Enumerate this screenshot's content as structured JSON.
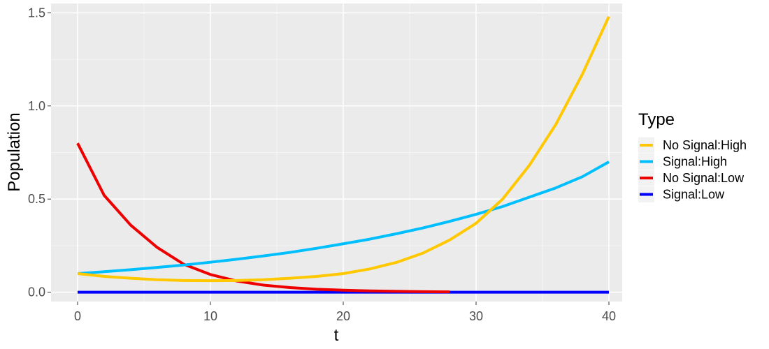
{
  "chart_data": {
    "type": "line",
    "title": "",
    "xlabel": "t",
    "ylabel": "Population",
    "xlim": [
      -2,
      41
    ],
    "ylim": [
      -0.05,
      1.55
    ],
    "x_ticks": [
      0,
      10,
      20,
      30,
      40
    ],
    "y_ticks": [
      0.0,
      0.5,
      1.0,
      1.5
    ],
    "x_tick_labels": [
      "0",
      "10",
      "20",
      "30",
      "40"
    ],
    "y_tick_labels": [
      "0.0",
      "0.5",
      "1.0",
      "1.5"
    ],
    "grid": true,
    "legend": {
      "title": "Type",
      "position": "right"
    },
    "series": [
      {
        "name": "No Signal:High",
        "color": "#FFC800",
        "x": [
          0,
          2,
          4,
          6,
          8,
          10,
          12,
          14,
          16,
          18,
          20,
          22,
          24,
          26,
          28,
          30,
          32,
          34,
          36,
          38,
          40
        ],
        "y": [
          0.1,
          0.085,
          0.075,
          0.067,
          0.063,
          0.062,
          0.063,
          0.067,
          0.075,
          0.085,
          0.1,
          0.125,
          0.16,
          0.21,
          0.28,
          0.37,
          0.5,
          0.68,
          0.9,
          1.17,
          1.48
        ]
      },
      {
        "name": "Signal:High",
        "color": "#00BFFF",
        "x": [
          0,
          2,
          4,
          6,
          8,
          10,
          12,
          14,
          16,
          18,
          20,
          22,
          24,
          26,
          28,
          30,
          32,
          34,
          36,
          38,
          40
        ],
        "y": [
          0.1,
          0.11,
          0.121,
          0.133,
          0.146,
          0.161,
          0.177,
          0.195,
          0.214,
          0.236,
          0.26,
          0.285,
          0.314,
          0.345,
          0.38,
          0.418,
          0.46,
          0.51,
          0.56,
          0.62,
          0.7
        ]
      },
      {
        "name": "No Signal:Low",
        "color": "#EE0000",
        "x": [
          0,
          2,
          4,
          6,
          8,
          10,
          12,
          14,
          16,
          18,
          20,
          22,
          24,
          26,
          28
        ],
        "y": [
          0.8,
          0.52,
          0.36,
          0.24,
          0.15,
          0.095,
          0.06,
          0.038,
          0.025,
          0.016,
          0.011,
          0.007,
          0.005,
          0.003,
          0.002
        ]
      },
      {
        "name": "Signal:Low",
        "color": "#0000FF",
        "x": [
          0,
          40
        ],
        "y": [
          0.0,
          0.0
        ]
      }
    ]
  }
}
